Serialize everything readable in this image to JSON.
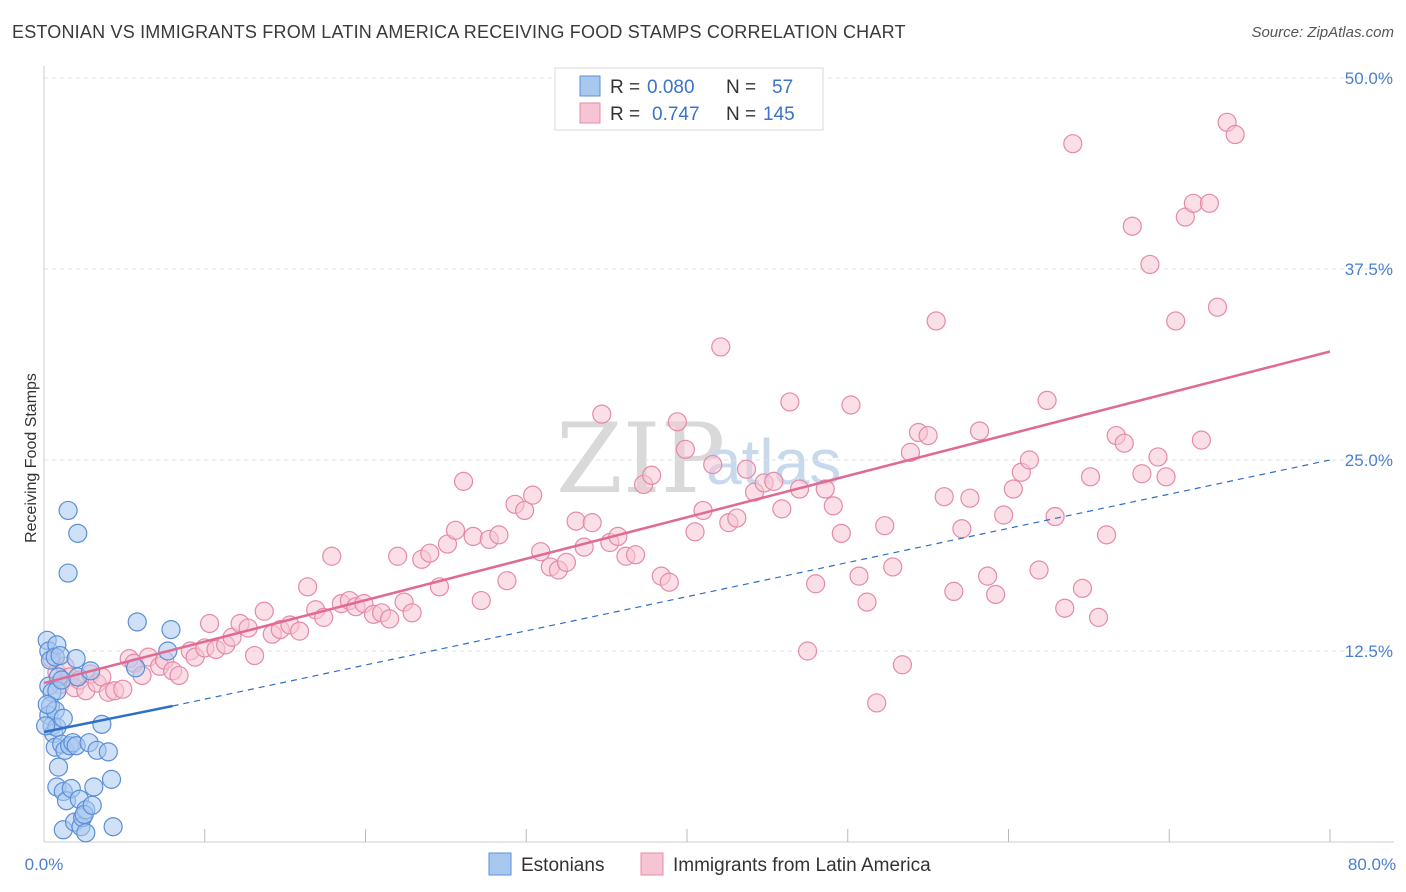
{
  "title": "ESTONIAN VS IMMIGRANTS FROM LATIN AMERICA RECEIVING FOOD STAMPS CORRELATION CHART",
  "source": "Source: ZipAtlas.com",
  "watermark": {
    "zip": "ZIP",
    "atlas": "atlas"
  },
  "legend_top": {
    "rows": [
      {
        "r_label": "R =",
        "r_value": "0.080",
        "n_label": "N =",
        "n_value": "57"
      },
      {
        "r_label": "R =",
        "r_value": "0.747",
        "n_label": "N =",
        "n_value": "145"
      }
    ]
  },
  "legend_bottom": [
    {
      "label": "Estonians"
    },
    {
      "label": "Immigrants from Latin America"
    }
  ],
  "colors": {
    "blue_fill": "#a9c8f0",
    "blue_stroke": "#5b8fd6",
    "blue_line": "#2f6fc4",
    "pink_fill": "#f7c4d4",
    "pink_stroke": "#e58aa8",
    "pink_line": "#e06a94",
    "grid": "#e0e0e0",
    "tick_label": "#4a7fd0"
  },
  "chart_data": {
    "type": "scatter",
    "title": "ESTONIAN VS IMMIGRANTS FROM LATIN AMERICA RECEIVING FOOD STAMPS CORRELATION CHART",
    "xlabel": "",
    "ylabel": "Receiving Food Stamps",
    "xlim": [
      0,
      80
    ],
    "ylim": [
      0,
      50
    ],
    "x_tick_labels": [
      "0.0%",
      "80.0%"
    ],
    "y_ticks": [
      12.5,
      25.0,
      37.5,
      50.0
    ],
    "y_tick_labels": [
      "12.5%",
      "25.0%",
      "37.5%",
      "50.0%"
    ],
    "grid": true,
    "series": [
      {
        "name": "Estonians",
        "R": 0.08,
        "N": 57,
        "trend": {
          "x": [
            0,
            8
          ],
          "y": [
            7.2,
            8.9
          ]
        },
        "trend_dashed": {
          "x": [
            8,
            80
          ],
          "y": [
            8.9,
            25.0
          ]
        },
        "points": [
          [
            0.2,
            13.2
          ],
          [
            0.3,
            12.5
          ],
          [
            0.4,
            11.9
          ],
          [
            0.3,
            10.2
          ],
          [
            0.5,
            9.8
          ],
          [
            0.4,
            8.9
          ],
          [
            0.3,
            8.3
          ],
          [
            0.5,
            7.6
          ],
          [
            0.6,
            7.1
          ],
          [
            0.8,
            12.9
          ],
          [
            0.7,
            12.1
          ],
          [
            0.9,
            10.8
          ],
          [
            0.8,
            9.9
          ],
          [
            0.7,
            8.6
          ],
          [
            0.8,
            7.5
          ],
          [
            0.7,
            6.2
          ],
          [
            0.9,
            4.9
          ],
          [
            0.8,
            3.6
          ],
          [
            1.0,
            12.2
          ],
          [
            1.1,
            10.6
          ],
          [
            1.2,
            8.1
          ],
          [
            1.1,
            6.4
          ],
          [
            1.3,
            6.0
          ],
          [
            1.2,
            3.3
          ],
          [
            1.4,
            2.7
          ],
          [
            1.2,
            0.8
          ],
          [
            1.6,
            6.3
          ],
          [
            1.7,
            3.5
          ],
          [
            1.5,
            17.6
          ],
          [
            1.5,
            21.7
          ],
          [
            1.8,
            6.5
          ],
          [
            1.9,
            1.3
          ],
          [
            2.0,
            12.0
          ],
          [
            2.1,
            10.8
          ],
          [
            2.0,
            6.3
          ],
          [
            2.2,
            2.8
          ],
          [
            2.3,
            1.0
          ],
          [
            2.4,
            1.6
          ],
          [
            2.1,
            20.2
          ],
          [
            2.6,
            2.1
          ],
          [
            2.5,
            1.8
          ],
          [
            2.6,
            0.6
          ],
          [
            2.9,
            11.2
          ],
          [
            2.8,
            6.5
          ],
          [
            3.1,
            3.6
          ],
          [
            3.0,
            2.4
          ],
          [
            3.3,
            6.0
          ],
          [
            3.6,
            7.7
          ],
          [
            4.0,
            5.9
          ],
          [
            4.2,
            4.1
          ],
          [
            4.3,
            1.0
          ],
          [
            5.8,
            14.4
          ],
          [
            5.7,
            11.4
          ],
          [
            7.9,
            13.9
          ],
          [
            7.7,
            12.5
          ],
          [
            0.2,
            9.0
          ],
          [
            0.1,
            7.6
          ]
        ]
      },
      {
        "name": "Immigrants from Latin America",
        "R": 0.747,
        "N": 145,
        "trend": {
          "x": [
            0,
            80
          ],
          "y": [
            10.4,
            32.1
          ]
        },
        "points": [
          [
            0.5,
            12.0
          ],
          [
            0.8,
            11.1
          ],
          [
            1.0,
            10.3
          ],
          [
            1.3,
            11.5
          ],
          [
            1.6,
            10.8
          ],
          [
            1.9,
            10.1
          ],
          [
            2.2,
            10.6
          ],
          [
            2.6,
            9.9
          ],
          [
            2.9,
            11.0
          ],
          [
            3.3,
            10.4
          ],
          [
            3.6,
            10.8
          ],
          [
            4.0,
            9.8
          ],
          [
            4.4,
            9.9
          ],
          [
            4.9,
            10.0
          ],
          [
            5.3,
            12.0
          ],
          [
            5.6,
            11.7
          ],
          [
            6.1,
            10.9
          ],
          [
            6.5,
            12.1
          ],
          [
            7.2,
            11.5
          ],
          [
            7.5,
            11.9
          ],
          [
            8.0,
            11.2
          ],
          [
            8.4,
            10.9
          ],
          [
            9.1,
            12.5
          ],
          [
            9.4,
            12.1
          ],
          [
            10.0,
            12.7
          ],
          [
            10.3,
            14.3
          ],
          [
            10.7,
            12.6
          ],
          [
            11.3,
            12.9
          ],
          [
            11.7,
            13.4
          ],
          [
            12.2,
            14.3
          ],
          [
            12.7,
            14.0
          ],
          [
            13.1,
            12.2
          ],
          [
            13.7,
            15.1
          ],
          [
            14.2,
            13.6
          ],
          [
            14.7,
            13.9
          ],
          [
            15.3,
            14.2
          ],
          [
            15.9,
            13.8
          ],
          [
            16.4,
            16.7
          ],
          [
            16.9,
            15.2
          ],
          [
            17.4,
            14.7
          ],
          [
            17.9,
            18.7
          ],
          [
            18.5,
            15.6
          ],
          [
            19.0,
            15.8
          ],
          [
            19.4,
            15.4
          ],
          [
            19.9,
            15.6
          ],
          [
            20.5,
            14.9
          ],
          [
            21.0,
            15.0
          ],
          [
            21.5,
            14.6
          ],
          [
            22.0,
            18.7
          ],
          [
            22.4,
            15.7
          ],
          [
            22.9,
            15.0
          ],
          [
            23.5,
            18.5
          ],
          [
            24.0,
            18.9
          ],
          [
            24.6,
            16.7
          ],
          [
            25.1,
            19.5
          ],
          [
            25.6,
            20.4
          ],
          [
            26.1,
            23.6
          ],
          [
            26.7,
            20.0
          ],
          [
            27.2,
            15.8
          ],
          [
            27.7,
            19.8
          ],
          [
            28.3,
            20.1
          ],
          [
            28.8,
            17.1
          ],
          [
            29.3,
            22.1
          ],
          [
            29.9,
            21.7
          ],
          [
            30.4,
            22.7
          ],
          [
            30.9,
            19.0
          ],
          [
            31.5,
            18.0
          ],
          [
            32.0,
            17.8
          ],
          [
            32.5,
            18.3
          ],
          [
            33.1,
            21.0
          ],
          [
            33.6,
            19.3
          ],
          [
            34.1,
            20.9
          ],
          [
            34.7,
            28.0
          ],
          [
            35.2,
            19.6
          ],
          [
            35.7,
            20.0
          ],
          [
            36.2,
            18.7
          ],
          [
            36.8,
            18.8
          ],
          [
            37.3,
            23.4
          ],
          [
            37.8,
            24.0
          ],
          [
            38.4,
            17.4
          ],
          [
            38.9,
            17.0
          ],
          [
            39.4,
            27.5
          ],
          [
            39.9,
            25.7
          ],
          [
            40.5,
            20.3
          ],
          [
            41.0,
            21.7
          ],
          [
            41.6,
            24.7
          ],
          [
            42.1,
            32.4
          ],
          [
            42.6,
            20.9
          ],
          [
            43.1,
            21.2
          ],
          [
            43.7,
            24.4
          ],
          [
            44.2,
            22.9
          ],
          [
            44.8,
            23.5
          ],
          [
            45.4,
            23.6
          ],
          [
            45.9,
            21.8
          ],
          [
            46.4,
            28.8
          ],
          [
            47.0,
            23.1
          ],
          [
            47.5,
            12.5
          ],
          [
            48.0,
            16.9
          ],
          [
            48.6,
            23.1
          ],
          [
            49.1,
            22.0
          ],
          [
            49.6,
            20.2
          ],
          [
            50.2,
            28.6
          ],
          [
            50.7,
            17.4
          ],
          [
            51.2,
            15.7
          ],
          [
            51.8,
            9.1
          ],
          [
            52.3,
            20.7
          ],
          [
            52.8,
            18.0
          ],
          [
            53.4,
            11.6
          ],
          [
            53.9,
            25.5
          ],
          [
            54.4,
            26.8
          ],
          [
            55.0,
            26.6
          ],
          [
            55.5,
            34.1
          ],
          [
            56.0,
            22.6
          ],
          [
            56.6,
            16.4
          ],
          [
            57.1,
            20.5
          ],
          [
            57.6,
            22.5
          ],
          [
            58.2,
            26.9
          ],
          [
            58.7,
            17.4
          ],
          [
            59.2,
            16.2
          ],
          [
            59.7,
            21.4
          ],
          [
            60.3,
            23.1
          ],
          [
            60.8,
            24.2
          ],
          [
            61.3,
            25.0
          ],
          [
            61.9,
            17.8
          ],
          [
            62.4,
            28.9
          ],
          [
            62.9,
            21.3
          ],
          [
            63.5,
            15.3
          ],
          [
            64.0,
            45.7
          ],
          [
            64.6,
            16.6
          ],
          [
            65.1,
            23.9
          ],
          [
            65.6,
            14.7
          ],
          [
            66.1,
            20.1
          ],
          [
            66.7,
            26.6
          ],
          [
            67.2,
            26.1
          ],
          [
            67.7,
            40.3
          ],
          [
            68.3,
            24.1
          ],
          [
            68.8,
            37.8
          ],
          [
            69.3,
            25.2
          ],
          [
            69.8,
            23.9
          ],
          [
            70.4,
            34.1
          ],
          [
            71.0,
            40.9
          ],
          [
            71.5,
            41.8
          ],
          [
            72.0,
            26.3
          ],
          [
            72.5,
            41.8
          ],
          [
            73.0,
            35.0
          ],
          [
            73.6,
            47.1
          ],
          [
            74.1,
            46.3
          ]
        ]
      }
    ]
  }
}
